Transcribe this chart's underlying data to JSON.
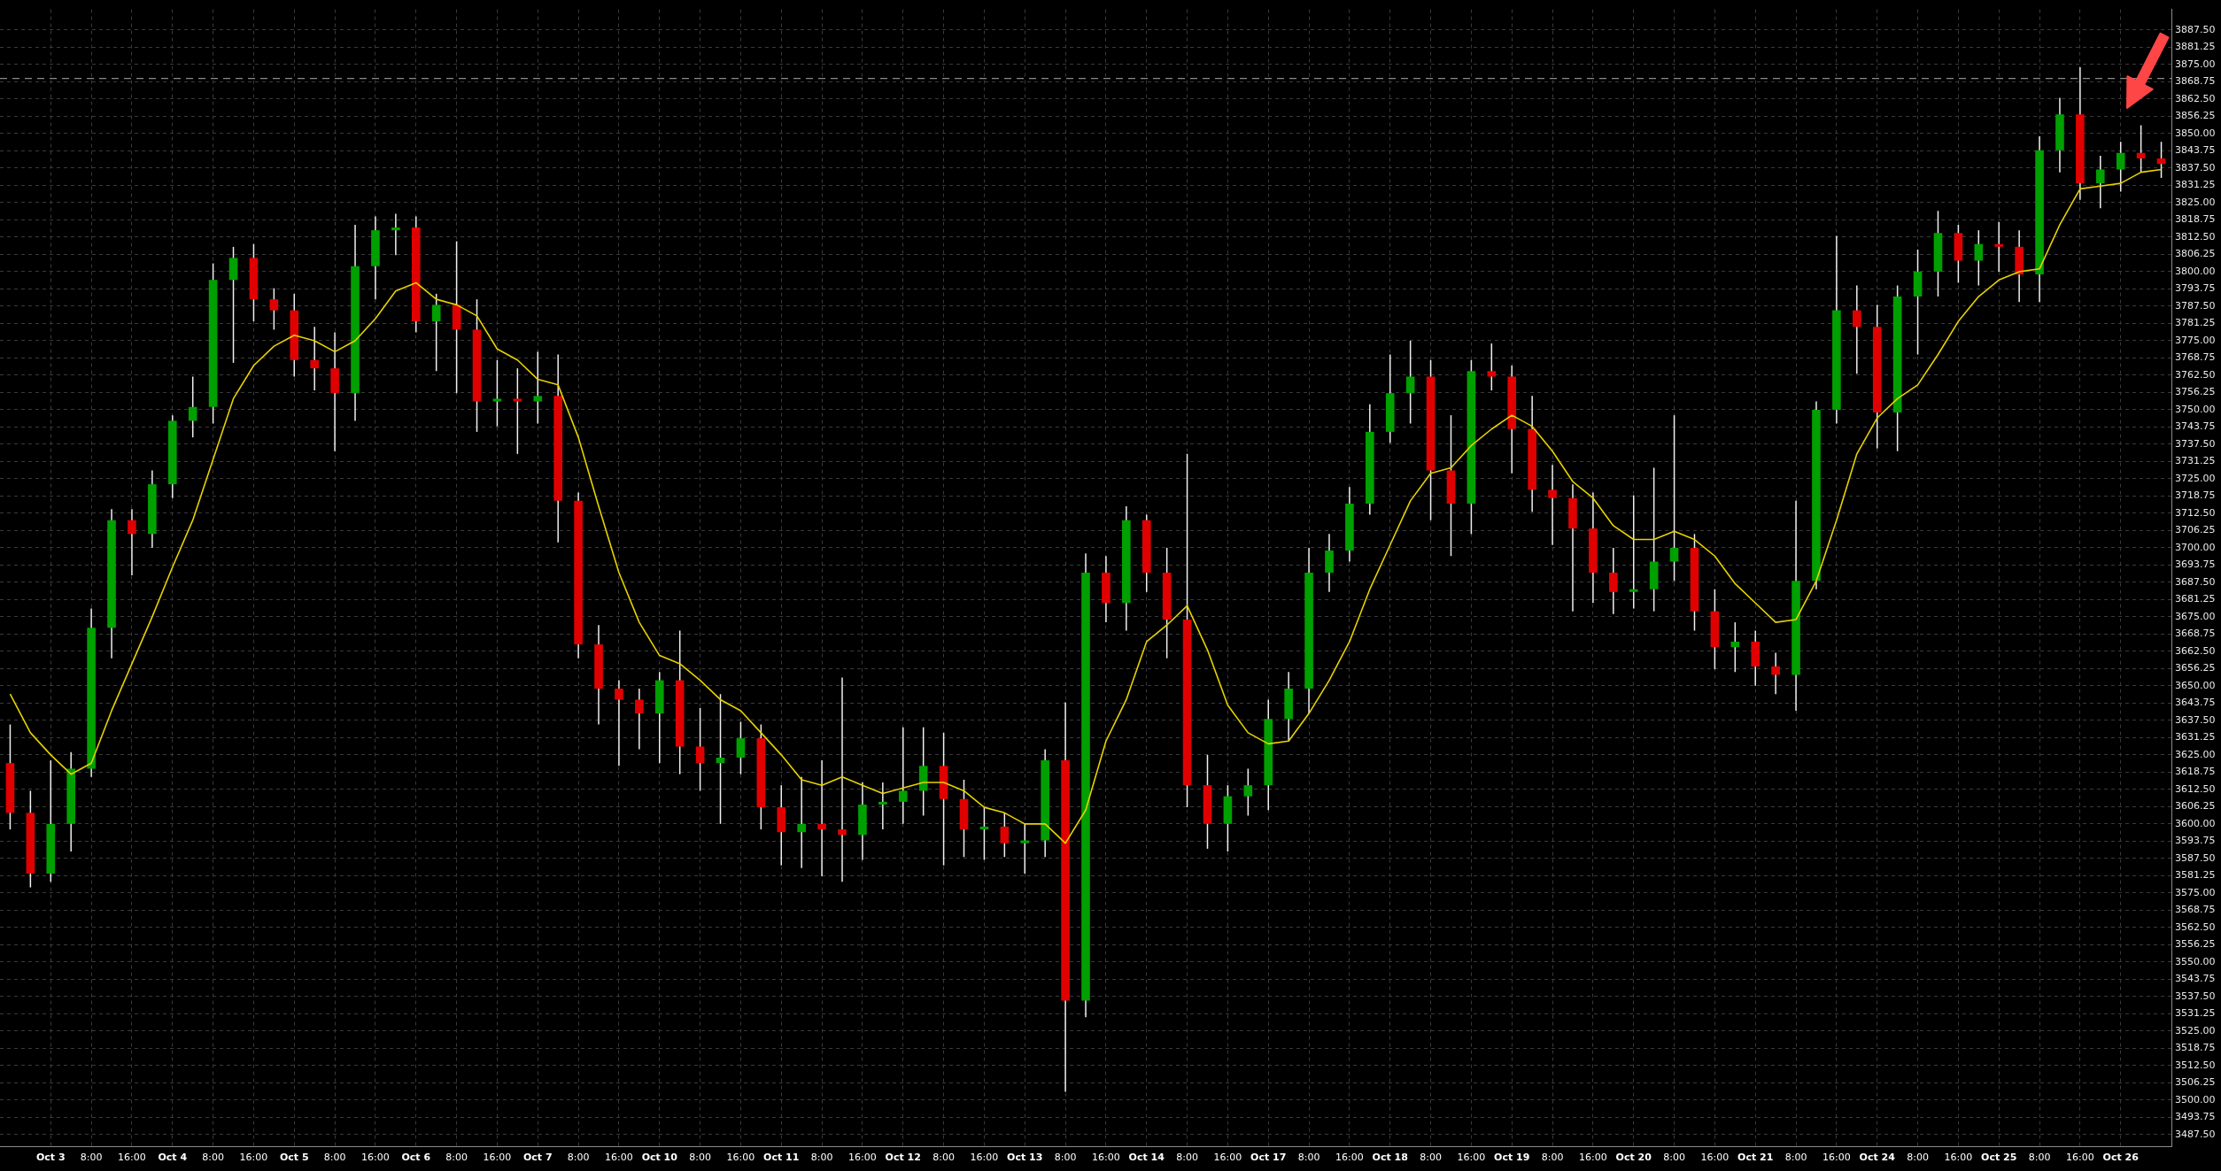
{
  "chart_data": {
    "type": "candlestick",
    "categories": [
      null,
      null,
      "Oct 3",
      null,
      "8:00",
      null,
      "16:00",
      null,
      "Oct 4",
      null,
      "8:00",
      null,
      "16:00",
      null,
      "Oct 5",
      null,
      "8:00",
      null,
      "16:00",
      null,
      "Oct 6",
      null,
      "8:00",
      null,
      "16:00",
      null,
      "Oct 7",
      null,
      "8:00",
      null,
      "16:00",
      null,
      "Oct 10",
      null,
      "8:00",
      null,
      "16:00",
      null,
      "Oct 11",
      null,
      "8:00",
      null,
      "16:00",
      null,
      "Oct 12",
      null,
      "8:00",
      null,
      "16:00",
      null,
      "Oct 13",
      null,
      "8:00",
      null,
      "16:00",
      null,
      "Oct 14",
      null,
      "8:00",
      null,
      "16:00",
      null,
      "Oct 17",
      null,
      "8:00",
      null,
      "16:00",
      null,
      "Oct 18",
      null,
      "8:00",
      null,
      "16:00",
      null,
      "Oct 19",
      null,
      "8:00",
      null,
      "16:00",
      null,
      "Oct 20",
      null,
      "8:00",
      null,
      "16:00",
      null,
      "Oct 21",
      null,
      "8:00",
      null,
      "16:00",
      null,
      "Oct 24",
      null,
      "8:00",
      null,
      "16:00",
      null,
      "Oct 25",
      null,
      "8:00",
      null,
      "16:00",
      null,
      "Oct 26",
      null,
      null
    ],
    "ohlc": [
      [
        3622,
        3636,
        3598,
        3604
      ],
      [
        3604,
        3612,
        3577,
        3582
      ],
      [
        3582,
        3623,
        3579,
        3600
      ],
      [
        3600,
        3626,
        3590,
        3620
      ],
      [
        3620,
        3678,
        3617,
        3671
      ],
      [
        3671,
        3714,
        3660,
        3710
      ],
      [
        3710,
        3714,
        3690,
        3705
      ],
      [
        3705,
        3728,
        3700,
        3723
      ],
      [
        3723,
        3748,
        3718,
        3746
      ],
      [
        3746,
        3762,
        3740,
        3751
      ],
      [
        3751,
        3803,
        3745,
        3797
      ],
      [
        3797,
        3809,
        3767,
        3805
      ],
      [
        3805,
        3810,
        3782,
        3790
      ],
      [
        3790,
        3794,
        3779,
        3786
      ],
      [
        3786,
        3792,
        3762,
        3768
      ],
      [
        3768,
        3780,
        3757,
        3765
      ],
      [
        3765,
        3778,
        3735,
        3756
      ],
      [
        3756,
        3817,
        3746,
        3802
      ],
      [
        3802,
        3820,
        3790,
        3815
      ],
      [
        3815,
        3821,
        3806,
        3816
      ],
      [
        3816,
        3820,
        3778,
        3782
      ],
      [
        3782,
        3792,
        3764,
        3788
      ],
      [
        3788,
        3811,
        3756,
        3779
      ],
      [
        3779,
        3790,
        3742,
        3753
      ],
      [
        3753,
        3768,
        3744,
        3754
      ],
      [
        3754,
        3765,
        3734,
        3753
      ],
      [
        3753,
        3771,
        3745,
        3755
      ],
      [
        3755,
        3770,
        3702,
        3717
      ],
      [
        3717,
        3720,
        3660,
        3665
      ],
      [
        3665,
        3672,
        3636,
        3649
      ],
      [
        3649,
        3652,
        3621,
        3645
      ],
      [
        3645,
        3649,
        3627,
        3640
      ],
      [
        3640,
        3655,
        3622,
        3652
      ],
      [
        3652,
        3670,
        3618,
        3628
      ],
      [
        3628,
        3642,
        3612,
        3622
      ],
      [
        3622,
        3647,
        3600,
        3624
      ],
      [
        3624,
        3637,
        3618,
        3631
      ],
      [
        3631,
        3636,
        3598,
        3606
      ],
      [
        3606,
        3614,
        3585,
        3597
      ],
      [
        3597,
        3617,
        3584,
        3600
      ],
      [
        3600,
        3623,
        3581,
        3598
      ],
      [
        3598,
        3653,
        3579,
        3596
      ],
      [
        3596,
        3615,
        3587,
        3607
      ],
      [
        3607,
        3615,
        3598,
        3608
      ],
      [
        3608,
        3635,
        3600,
        3612
      ],
      [
        3612,
        3635,
        3603,
        3621
      ],
      [
        3621,
        3633,
        3585,
        3609
      ],
      [
        3609,
        3616,
        3588,
        3598
      ],
      [
        3598,
        3606,
        3587,
        3599
      ],
      [
        3599,
        3604,
        3588,
        3593
      ],
      [
        3593,
        3600,
        3582,
        3594
      ],
      [
        3594,
        3627,
        3588,
        3623
      ],
      [
        3623,
        3644,
        3503,
        3536
      ],
      [
        3536,
        3698,
        3530,
        3691
      ],
      [
        3691,
        3697,
        3673,
        3680
      ],
      [
        3680,
        3715,
        3670,
        3710
      ],
      [
        3710,
        3712,
        3684,
        3691
      ],
      [
        3691,
        3700,
        3660,
        3674
      ],
      [
        3674,
        3734,
        3606,
        3614
      ],
      [
        3614,
        3625,
        3591,
        3600
      ],
      [
        3600,
        3614,
        3590,
        3610
      ],
      [
        3610,
        3620,
        3603,
        3614
      ],
      [
        3614,
        3645,
        3605,
        3638
      ],
      [
        3638,
        3655,
        3630,
        3649
      ],
      [
        3649,
        3700,
        3640,
        3691
      ],
      [
        3691,
        3705,
        3684,
        3699
      ],
      [
        3699,
        3722,
        3695,
        3716
      ],
      [
        3716,
        3752,
        3712,
        3742
      ],
      [
        3742,
        3770,
        3738,
        3756
      ],
      [
        3756,
        3775,
        3745,
        3762
      ],
      [
        3762,
        3768,
        3710,
        3728
      ],
      [
        3728,
        3748,
        3697,
        3716
      ],
      [
        3716,
        3768,
        3705,
        3764
      ],
      [
        3764,
        3774,
        3757,
        3762
      ],
      [
        3762,
        3766,
        3727,
        3743
      ],
      [
        3743,
        3755,
        3713,
        3721
      ],
      [
        3721,
        3730,
        3701,
        3718
      ],
      [
        3718,
        3723,
        3677,
        3707
      ],
      [
        3707,
        3720,
        3680,
        3691
      ],
      [
        3691,
        3700,
        3676,
        3684
      ],
      [
        3684,
        3719,
        3678,
        3685
      ],
      [
        3685,
        3729,
        3677,
        3695
      ],
      [
        3695,
        3748,
        3688,
        3700
      ],
      [
        3700,
        3705,
        3670,
        3677
      ],
      [
        3677,
        3685,
        3656,
        3664
      ],
      [
        3664,
        3673,
        3655,
        3666
      ],
      [
        3666,
        3670,
        3650,
        3657
      ],
      [
        3657,
        3662,
        3647,
        3654
      ],
      [
        3654,
        3717,
        3641,
        3688
      ],
      [
        3688,
        3753,
        3685,
        3750
      ],
      [
        3750,
        3813,
        3745,
        3786
      ],
      [
        3786,
        3795,
        3763,
        3780
      ],
      [
        3780,
        3788,
        3736,
        3749
      ],
      [
        3749,
        3795,
        3735,
        3791
      ],
      [
        3791,
        3808,
        3770,
        3800
      ],
      [
        3800,
        3822,
        3791,
        3814
      ],
      [
        3814,
        3817,
        3796,
        3804
      ],
      [
        3804,
        3815,
        3795,
        3810
      ],
      [
        3810,
        3818,
        3800,
        3809
      ],
      [
        3809,
        3815,
        3789,
        3799
      ],
      [
        3799,
        3849,
        3789,
        3844
      ],
      [
        3844,
        3863,
        3836,
        3857
      ],
      [
        3857,
        3874,
        3826,
        3832
      ],
      [
        3832,
        3842,
        3823,
        3837
      ],
      [
        3837,
        3847,
        3829,
        3843
      ],
      [
        3843,
        3853,
        3836,
        3841
      ],
      [
        3841,
        3847,
        3834,
        3839
      ]
    ],
    "colors": [
      "#e00000",
      "#e00000",
      "#00a000",
      "#00a000",
      "#00a000",
      "#00a000",
      "#e00000",
      "#00a000",
      "#00a000",
      "#00a000",
      "#00a000",
      "#00a000",
      "#e00000",
      "#e00000",
      "#e00000",
      "#e00000",
      "#e00000",
      "#00a000",
      "#00a000",
      "#00a000",
      "#e00000",
      "#00a000",
      "#e00000",
      "#e00000",
      "#00a000",
      "#e00000",
      "#00a000",
      "#e00000",
      "#e00000",
      "#e00000",
      "#e00000",
      "#e00000",
      "#00a000",
      "#e00000",
      "#e00000",
      "#00a000",
      "#00a000",
      "#e00000",
      "#e00000",
      "#00a000",
      "#e00000",
      "#e00000",
      "#00a000",
      "#00a000",
      "#00a000",
      "#00a000",
      "#e00000",
      "#e00000",
      "#00a000",
      "#e00000",
      "#00a000",
      "#00a000",
      "#e00000",
      "#00a000",
      "#e00000",
      "#00a000",
      "#e00000",
      "#e00000",
      "#e00000",
      "#e00000",
      "#00a000",
      "#00a000",
      "#00a000",
      "#00a000",
      "#00a000",
      "#00a000",
      "#00a000",
      "#00a000",
      "#00a000",
      "#00a000",
      "#e00000",
      "#e00000",
      "#00a000",
      "#e00000",
      "#e00000",
      "#e00000",
      "#e00000",
      "#e00000",
      "#e00000",
      "#e00000",
      "#00a000",
      "#00a000",
      "#00a000",
      "#e00000",
      "#e00000",
      "#00a000",
      "#e00000",
      "#e00000",
      "#00a000",
      "#00a000",
      "#00a000",
      "#e00000",
      "#e00000",
      "#00a000",
      "#00a000",
      "#00a000",
      "#e00000",
      "#00a000",
      "#e00000",
      "#e00000",
      "#00a000",
      "#00a000",
      "#e00000",
      "#00a000",
      "#00a000",
      "#e00000",
      "#e00000"
    ],
    "series": [
      {
        "type": "line",
        "color": "#e6d200",
        "values": [
          3647,
          3633,
          3625,
          3618,
          3622,
          3641,
          3658,
          3675,
          3693,
          3710,
          3732,
          3754,
          3766,
          3773,
          3777,
          3775,
          3771,
          3775,
          3783,
          3793,
          3796,
          3790,
          3788,
          3784,
          3772,
          3768,
          3761,
          3759,
          3740,
          3715,
          3691,
          3673,
          3661,
          3658,
          3652,
          3645,
          3641,
          3633,
          3625,
          3616,
          3614,
          3617,
          3614,
          3611,
          3613,
          3615,
          3615,
          3612,
          3606,
          3604,
          3600,
          3600,
          3593,
          3605,
          3630,
          3645,
          3666,
          3672,
          3679,
          3663,
          3643,
          3633,
          3629,
          3630,
          3640,
          3652,
          3666,
          3685,
          3701,
          3717,
          3727,
          3729,
          3737,
          3743,
          3748,
          3744,
          3735,
          3724,
          3718,
          3708,
          3703,
          3703,
          3706,
          3703,
          3697,
          3687,
          3680,
          3673,
          3674,
          3688,
          3710,
          3734,
          3747,
          3754,
          3759,
          3770,
          3782,
          3791,
          3797,
          3800,
          3801,
          3817,
          3830,
          3831,
          3832,
          3836,
          3837
        ]
      }
    ],
    "ylim": [
      3483,
      3895
    ],
    "yticks": [
      {
        "value": 3487.5,
        "label": "3487.50"
      },
      {
        "value": 3493.75,
        "label": "3493.75"
      },
      {
        "value": 3500,
        "label": "3500.00"
      },
      {
        "value": 3506.25,
        "label": "3506.25"
      },
      {
        "value": 3512.5,
        "label": "3512.50"
      },
      {
        "value": 3518.75,
        "label": "3518.75"
      },
      {
        "value": 3525,
        "label": "3525.00"
      },
      {
        "value": 3531.25,
        "label": "3531.25"
      },
      {
        "value": 3537.5,
        "label": "3537.50"
      },
      {
        "value": 3543.75,
        "label": "3543.75"
      },
      {
        "value": 3550,
        "label": "3550.00"
      },
      {
        "value": 3556.25,
        "label": "3556.25"
      },
      {
        "value": 3562.5,
        "label": "3562.50"
      },
      {
        "value": 3568.75,
        "label": "3568.75"
      },
      {
        "value": 3575,
        "label": "3575.00"
      },
      {
        "value": 3581.25,
        "label": "3581.25"
      },
      {
        "value": 3587.5,
        "label": "3587.50"
      },
      {
        "value": 3593.75,
        "label": "3593.75"
      },
      {
        "value": 3600,
        "label": "3600.00"
      },
      {
        "value": 3606.25,
        "label": "3606.25"
      },
      {
        "value": 3612.5,
        "label": "3612.50"
      },
      {
        "value": 3618.75,
        "label": "3618.75"
      },
      {
        "value": 3625,
        "label": "3625.00"
      },
      {
        "value": 3631.25,
        "label": "3631.25"
      },
      {
        "value": 3637.5,
        "label": "3637.50"
      },
      {
        "value": 3643.75,
        "label": "3643.75"
      },
      {
        "value": 3650,
        "label": "3650.00"
      },
      {
        "value": 3656.25,
        "label": "3656.25"
      },
      {
        "value": 3662.5,
        "label": "3662.50"
      },
      {
        "value": 3668.75,
        "label": "3668.75"
      },
      {
        "value": 3675,
        "label": "3675.00"
      },
      {
        "value": 3681.25,
        "label": "3681.25"
      },
      {
        "value": 3687.5,
        "label": "3687.50"
      },
      {
        "value": 3693.75,
        "label": "3693.75"
      },
      {
        "value": 3700,
        "label": "3700.00"
      },
      {
        "value": 3706.25,
        "label": "3706.25"
      },
      {
        "value": 3712.5,
        "label": "3712.50"
      },
      {
        "value": 3718.75,
        "label": "3718.75"
      },
      {
        "value": 3725,
        "label": "3725.00"
      },
      {
        "value": 3731.25,
        "label": "3731.25"
      },
      {
        "value": 3737.5,
        "label": "3737.50"
      },
      {
        "value": 3743.75,
        "label": "3743.75"
      },
      {
        "value": 3750,
        "label": "3750.00"
      },
      {
        "value": 3756.25,
        "label": "3756.25"
      },
      {
        "value": 3762.5,
        "label": "3762.50"
      },
      {
        "value": 3768.75,
        "label": "3768.75"
      },
      {
        "value": 3775,
        "label": "3775.00"
      },
      {
        "value": 3781.25,
        "label": "3781.25"
      },
      {
        "value": 3787.5,
        "label": "3787.50"
      },
      {
        "value": 3793.75,
        "label": "3793.75"
      },
      {
        "value": 3800,
        "label": "3800.00"
      },
      {
        "value": 3806.25,
        "label": "3806.25"
      },
      {
        "value": 3812.5,
        "label": "3812.50"
      },
      {
        "value": 3818.75,
        "label": "3818.75"
      },
      {
        "value": 3825,
        "label": "3825.00"
      },
      {
        "value": 3831.25,
        "label": "3831.25"
      },
      {
        "value": 3837.5,
        "label": "3837.50"
      },
      {
        "value": 3843.75,
        "label": "3843.75"
      },
      {
        "value": 3850,
        "label": "3850.00"
      },
      {
        "value": 3856.25,
        "label": "3856.25"
      },
      {
        "value": 3862.5,
        "label": "3862.50"
      },
      {
        "value": 3868.75,
        "label": "3868.75"
      },
      {
        "value": 3875,
        "label": "3875.00"
      },
      {
        "value": 3881.25,
        "label": "3881.25"
      },
      {
        "value": 3887.5,
        "label": "3887.50"
      }
    ],
    "grid": true,
    "ref_lines": [
      {
        "axis": "y",
        "value": 3870,
        "color": "#8a8a8a",
        "line_style": "dashed"
      }
    ]
  }
}
